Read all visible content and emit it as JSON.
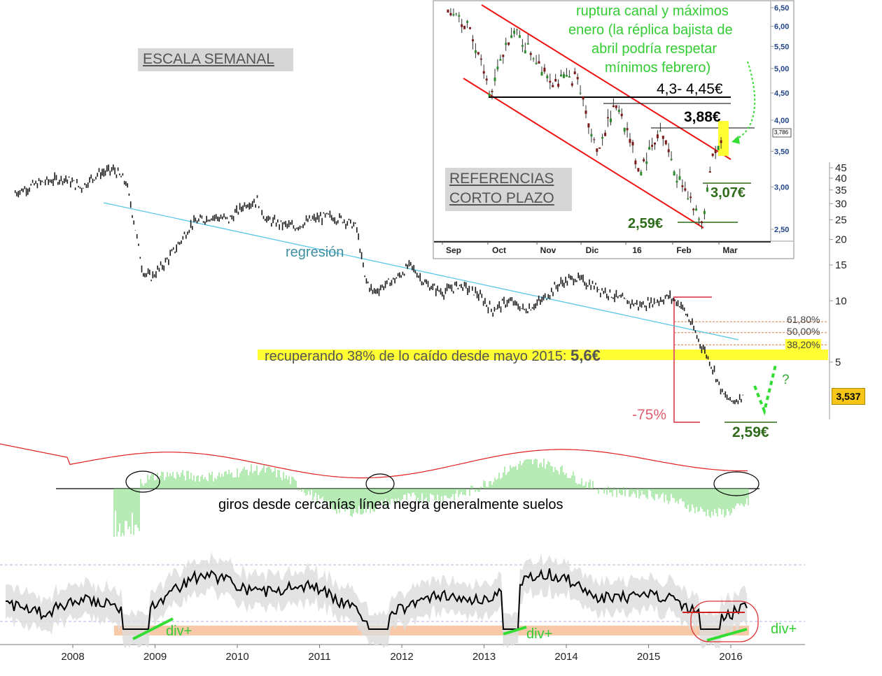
{
  "labels": {
    "weekly_scale": "ESCALA SEMANAL",
    "short_term_refs_1": "REFERENCIAS",
    "short_term_refs_2": "CORTO PLAZO",
    "regression": "regresión",
    "recovery_text": "recuperando 38% de lo caído desde mayo 2015: ",
    "recovery_value": "5,6€",
    "drop_pct": "-75%",
    "low_main": "2,59€",
    "question": "?",
    "osc_note": "giros desde cercanías línea negra generalmente suelos",
    "div_1": "div+",
    "div_2": "div+",
    "div_3": "div+",
    "price_badge": "3,537"
  },
  "fib_levels": [
    {
      "label": "61,80%",
      "value": 7.89
    },
    {
      "label": "50,00%",
      "value": 6.98
    },
    {
      "label": "38,20%",
      "value": 6.08
    }
  ],
  "colors": {
    "price": "#1a1a1a",
    "regression": "#5cc7e8",
    "highlight": "#ffff33",
    "drop_box": "#e06070",
    "osc_hist": "#8ee08e",
    "osc_signal": "#e02020",
    "green_label": "#2e6b1a",
    "bright_green": "#33dd33",
    "channel": "#ee1111",
    "band_fill": "#dcdcdc",
    "rsi_floor": "#f8c8a8"
  },
  "chart_data": [
    {
      "type": "line",
      "title": "",
      "scale": "log",
      "ylim": [
        2.2,
        48
      ],
      "y_ticks": [
        "45",
        "40",
        "35",
        "30",
        "25",
        "20",
        "15",
        "10",
        "5"
      ],
      "x_ticks": [
        "2008",
        "2009",
        "2010",
        "2011",
        "2012",
        "2013",
        "2014",
        "2015",
        "2016"
      ],
      "series": [
        {
          "x": [
            2007.3,
            2007.6,
            2007.9,
            2008.1,
            2008.3,
            2008.5,
            2008.65,
            2008.75,
            2008.85,
            2008.95,
            2009.1,
            2009.25,
            2009.45,
            2009.7,
            2009.9,
            2010.1,
            2010.25,
            2010.35,
            2010.5,
            2010.7,
            2010.9,
            2011.1,
            2011.3,
            2011.45,
            2011.55,
            2011.65,
            2011.8,
            2011.95,
            2012.1,
            2012.3,
            2012.5,
            2012.7,
            2012.9,
            2013.1,
            2013.3,
            2013.5,
            2013.7,
            2013.9,
            2014.1,
            2014.3,
            2014.5,
            2014.7,
            2014.9,
            2015.1,
            2015.25,
            2015.4,
            2015.5,
            2015.6,
            2015.7,
            2015.8,
            2015.9,
            2016.0,
            2016.1,
            2016.15
          ],
          "y": [
            34,
            38,
            40,
            36,
            42,
            44,
            38,
            24,
            14,
            13,
            15,
            18,
            24,
            26,
            25,
            30,
            31,
            25,
            24,
            23,
            25,
            26,
            25,
            23,
            13,
            11,
            12,
            13,
            15,
            12,
            11,
            12,
            11,
            9,
            10,
            9,
            10,
            12,
            13,
            12,
            11,
            10,
            9.5,
            10,
            10.5,
            9.5,
            8,
            6.5,
            5.5,
            4.5,
            3.5,
            3.2,
            3.3,
            3.54
          ]
        }
      ]
    },
    {
      "type": "line",
      "title": "",
      "scale": "log",
      "ylim": [
        2.4,
        6.6
      ],
      "y_ticks": [
        "6,50",
        "6,00",
        "5,50",
        "5,00",
        "4,50",
        "4,00",
        "3,50",
        "3,00",
        "2,50"
      ],
      "x_ticks": [
        "Sep",
        "Oct",
        "Nov",
        "Dic",
        "16",
        "Feb",
        "Mar"
      ],
      "annotations": [
        "ruptura canal y máximos",
        "enero (la réplica bajista de",
        "abril podría respetar",
        "mínimos febrero)",
        "4,3- 4,45€",
        "3,88€",
        "3,07€",
        "2,59€",
        "3,786"
      ],
      "series": [
        {
          "x": [
            0,
            0.5,
            1,
            1.5,
            2,
            2.5,
            3,
            3.5,
            4,
            4.5,
            5,
            5.5,
            6,
            6.2,
            6.5
          ],
          "y": [
            6.5,
            6.0,
            4.4,
            5.9,
            5.3,
            4.7,
            4.8,
            3.5,
            4.3,
            3.2,
            3.8,
            3.0,
            2.6,
            3.3,
            3.79
          ]
        }
      ]
    }
  ]
}
